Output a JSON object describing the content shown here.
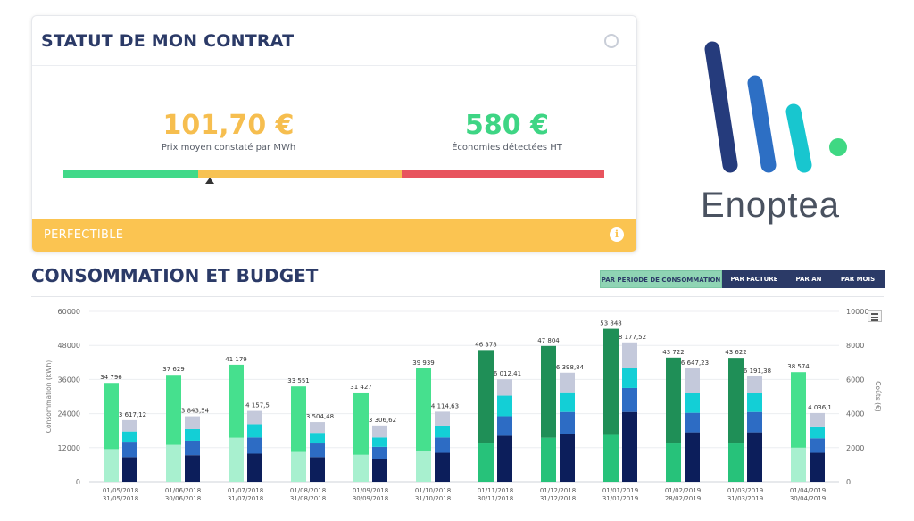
{
  "contract": {
    "title": "STATUT DE MON CONTRAT",
    "price_value": "101,70 €",
    "price_label": "Prix moyen constaté par MWh",
    "savings_value": "580 €",
    "savings_label": "Économies détectées HT",
    "gauge_colors": [
      "#41d989",
      "#f7c252",
      "#e8545e"
    ],
    "status_label": "PERFECTIBLE",
    "status_color": "#fbc451"
  },
  "logo": {
    "word": "Enoptea"
  },
  "section": {
    "title": "CONSOMMATION ET BUDGET",
    "tabs": [
      {
        "label": "PAR PERIODE DE CONSOMMATION",
        "active": true
      },
      {
        "label": "PAR FACTURE",
        "active": false
      },
      {
        "label": "PAR AN",
        "active": false
      },
      {
        "label": "PAR MOIS",
        "active": false
      }
    ]
  },
  "chart_data": {
    "type": "bar",
    "y_label": "Consommation (kWh)",
    "y2_label": "Coûts (€)",
    "ylim": [
      0,
      60000
    ],
    "y_ticks": [
      "0",
      "12000",
      "24000",
      "36000",
      "48000",
      "60000"
    ],
    "y2lim": [
      0,
      10000
    ],
    "y2_ticks": [
      "0",
      "2000",
      "4000",
      "6000",
      "8000",
      "10000"
    ],
    "grid": true,
    "categories": [
      [
        "01/05/2018",
        "31/05/2018"
      ],
      [
        "01/06/2018",
        "30/06/2018"
      ],
      [
        "01/07/2018",
        "31/07/2018"
      ],
      [
        "01/08/2018",
        "31/08/2018"
      ],
      [
        "01/09/2018",
        "30/09/2018"
      ],
      [
        "01/10/2018",
        "31/10/2018"
      ],
      [
        "01/11/2018",
        "30/11/2018"
      ],
      [
        "01/12/2018",
        "31/12/2018"
      ],
      [
        "01/01/2019",
        "31/01/2019"
      ],
      [
        "01/02/2019",
        "28/02/2019"
      ],
      [
        "01/03/2019",
        "31/03/2019"
      ],
      [
        "01/04/2019",
        "30/04/2019"
      ]
    ],
    "consumption_totals": [
      34796,
      37629,
      41179,
      33551,
      31427,
      39939,
      46378,
      47804,
      53848,
      43722,
      43622,
      38574
    ],
    "consumption_labels": [
      "34 796",
      "37 629",
      "41 179",
      "33 551",
      "31 427",
      "39 939",
      "46 378",
      "47 804",
      "53 848",
      "43 722",
      "43 622",
      "38 574"
    ],
    "consumption_lower": [
      11500,
      13000,
      15500,
      10500,
      9500,
      11000,
      13500,
      15500,
      16500,
      13500,
      13500,
      12000
    ],
    "consumption_colors_summer": [
      "#a8f0cf",
      "#46e08e"
    ],
    "consumption_colors_winter": [
      "#27c27a",
      "#1f8f57"
    ],
    "winter_flags": [
      false,
      false,
      false,
      false,
      false,
      false,
      true,
      true,
      true,
      true,
      true,
      false
    ],
    "cost_totals": [
      3617.12,
      3843.54,
      4157.5,
      3504.48,
      3306.62,
      4114.63,
      6012.41,
      6398.84,
      8177.52,
      6647.23,
      6191.38,
      4036.1
    ],
    "cost_labels": [
      "3 617,12",
      "3 843,54",
      "4 157,5",
      "3 504,48",
      "3 306,62",
      "4 114,63",
      "6 012,41",
      "6 398,84",
      "8 177,52",
      "6 647,23",
      "6 191,38",
      "4 036,1"
    ],
    "cost_parts": [
      [
        1450,
        850,
        650,
        667
      ],
      [
        1560,
        850,
        680,
        754
      ],
      [
        1650,
        950,
        780,
        778
      ],
      [
        1450,
        800,
        620,
        635
      ],
      [
        1350,
        700,
        550,
        707
      ],
      [
        1700,
        900,
        700,
        815
      ],
      [
        2700,
        1150,
        1200,
        962
      ],
      [
        2800,
        1300,
        1150,
        1149
      ],
      [
        4100,
        1400,
        1200,
        1478
      ],
      [
        2900,
        1150,
        1150,
        1447
      ],
      [
        2900,
        1200,
        1100,
        991
      ],
      [
        1700,
        850,
        650,
        836
      ]
    ],
    "cost_colors": [
      "#0c1e5b",
      "#2d6cc4",
      "#13cfd6",
      "#c4c9db"
    ]
  }
}
